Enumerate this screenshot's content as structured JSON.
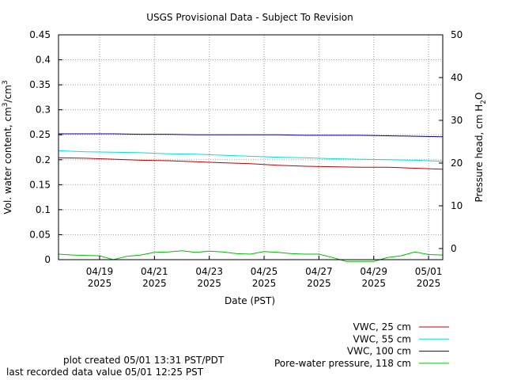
{
  "chart_data": {
    "type": "line",
    "title": "USGS Provisional Data - Subject To Revision",
    "xlabel": "Date (PST)",
    "ylabel": "Vol. water content, cm",
    "ylabel_sup1": "3",
    "ylabel_mid": "/cm",
    "ylabel_sup2": "3",
    "y2label": "Pressure head, cm H",
    "y2label_sub": "2",
    "y2label_end": "O",
    "xlim": [
      "2025-04-17T12:00",
      "2025-05-01T12:25"
    ],
    "ylim": [
      0,
      0.45
    ],
    "y2lim": [
      -2.6,
      50
    ],
    "grid": true,
    "legend_position": "bottom-right",
    "y_ticks": [
      "0",
      "0.05",
      "0.1",
      "0.15",
      "0.2",
      "0.25",
      "0.3",
      "0.35",
      "0.4",
      "0.45"
    ],
    "y2_ticks": [
      "0",
      "10",
      "20",
      "30",
      "40",
      "50"
    ],
    "x_ticks": [
      {
        "date": "2025-04-19",
        "line1": "04/19",
        "line2": "2025"
      },
      {
        "date": "2025-04-21",
        "line1": "04/21",
        "line2": "2025"
      },
      {
        "date": "2025-04-23",
        "line1": "04/23",
        "line2": "2025"
      },
      {
        "date": "2025-04-25",
        "line1": "04/25",
        "line2": "2025"
      },
      {
        "date": "2025-04-27",
        "line1": "04/27",
        "line2": "2025"
      },
      {
        "date": "2025-04-29",
        "line1": "04/29",
        "line2": "2025"
      },
      {
        "date": "2025-05-01",
        "line1": "05/01",
        "line2": "2025"
      }
    ],
    "series": [
      {
        "name": "VWC, 25 cm",
        "color": "#c00000",
        "axis": "left",
        "x": [
          "2025-04-17T12:00",
          "2025-04-18T12:00",
          "2025-04-19T12:00",
          "2025-04-20T12:00",
          "2025-04-21T12:00",
          "2025-04-22T12:00",
          "2025-04-23T12:00",
          "2025-04-24T12:00",
          "2025-04-25T12:00",
          "2025-04-26T12:00",
          "2025-04-27T12:00",
          "2025-04-28T12:00",
          "2025-04-29T12:00",
          "2025-04-30T12:00",
          "2025-05-01T12:25"
        ],
        "y": [
          0.204,
          0.203,
          0.201,
          0.199,
          0.198,
          0.196,
          0.194,
          0.192,
          0.189,
          0.187,
          0.186,
          0.185,
          0.185,
          0.183,
          0.181
        ]
      },
      {
        "name": "VWC, 55 cm",
        "color": "#00e0e0",
        "axis": "left",
        "x": [
          "2025-04-17T12:00",
          "2025-04-18T12:00",
          "2025-04-19T12:00",
          "2025-04-20T12:00",
          "2025-04-21T12:00",
          "2025-04-22T12:00",
          "2025-04-23T12:00",
          "2025-04-24T12:00",
          "2025-04-25T12:00",
          "2025-04-26T12:00",
          "2025-04-27T12:00",
          "2025-04-28T12:00",
          "2025-04-29T12:00",
          "2025-04-30T12:00",
          "2025-05-01T12:25"
        ],
        "y": [
          0.218,
          0.216,
          0.215,
          0.214,
          0.212,
          0.211,
          0.209,
          0.207,
          0.205,
          0.204,
          0.202,
          0.201,
          0.2,
          0.199,
          0.197
        ]
      },
      {
        "name": "VWC, 100 cm",
        "color": "#0000a0",
        "axis": "left",
        "x": [
          "2025-04-17T12:00",
          "2025-04-18T12:00",
          "2025-04-19T12:00",
          "2025-04-20T12:00",
          "2025-04-21T12:00",
          "2025-04-22T12:00",
          "2025-04-23T12:00",
          "2025-04-24T12:00",
          "2025-04-25T12:00",
          "2025-04-26T12:00",
          "2025-04-27T12:00",
          "2025-04-28T12:00",
          "2025-04-29T12:00",
          "2025-04-30T12:00",
          "2025-05-01T12:25"
        ],
        "y": [
          0.252,
          0.252,
          0.252,
          0.251,
          0.251,
          0.25,
          0.25,
          0.25,
          0.25,
          0.249,
          0.249,
          0.249,
          0.248,
          0.247,
          0.246
        ]
      },
      {
        "name": "Pore-water pressure, 118 cm",
        "color": "#00c000",
        "axis": "right",
        "x": [
          "2025-04-17T12:00",
          "2025-04-18T00:00",
          "2025-04-18T12:00",
          "2025-04-19T00:00",
          "2025-04-19T12:00",
          "2025-04-20T00:00",
          "2025-04-20T12:00",
          "2025-04-21T00:00",
          "2025-04-21T12:00",
          "2025-04-22T00:00",
          "2025-04-22T12:00",
          "2025-04-23T00:00",
          "2025-04-23T12:00",
          "2025-04-24T00:00",
          "2025-04-24T12:00",
          "2025-04-25T00:00",
          "2025-04-25T12:00",
          "2025-04-26T00:00",
          "2025-04-26T12:00",
          "2025-04-27T00:00",
          "2025-04-27T12:00",
          "2025-04-28T00:00",
          "2025-04-28T12:00",
          "2025-04-29T00:00",
          "2025-04-29T12:00",
          "2025-04-30T00:00",
          "2025-04-30T12:00",
          "2025-05-01T00:00",
          "2025-05-01T12:25"
        ],
        "y": [
          -1.3,
          -1.5,
          -1.6,
          -1.7,
          -2.6,
          -1.8,
          -1.5,
          -0.9,
          -0.8,
          -0.5,
          -0.9,
          -0.6,
          -0.8,
          -1.2,
          -1.3,
          -0.7,
          -0.9,
          -1.2,
          -1.3,
          -1.3,
          -2.1,
          -3.0,
          -3.0,
          -3.0,
          -2.1,
          -1.7,
          -0.8,
          -1.4,
          -1.5
        ]
      }
    ]
  },
  "footer": {
    "plot_created": "plot created 05/01 13:31 PST/PDT",
    "last_recorded": "last recorded data value 05/01 12:25 PST"
  }
}
